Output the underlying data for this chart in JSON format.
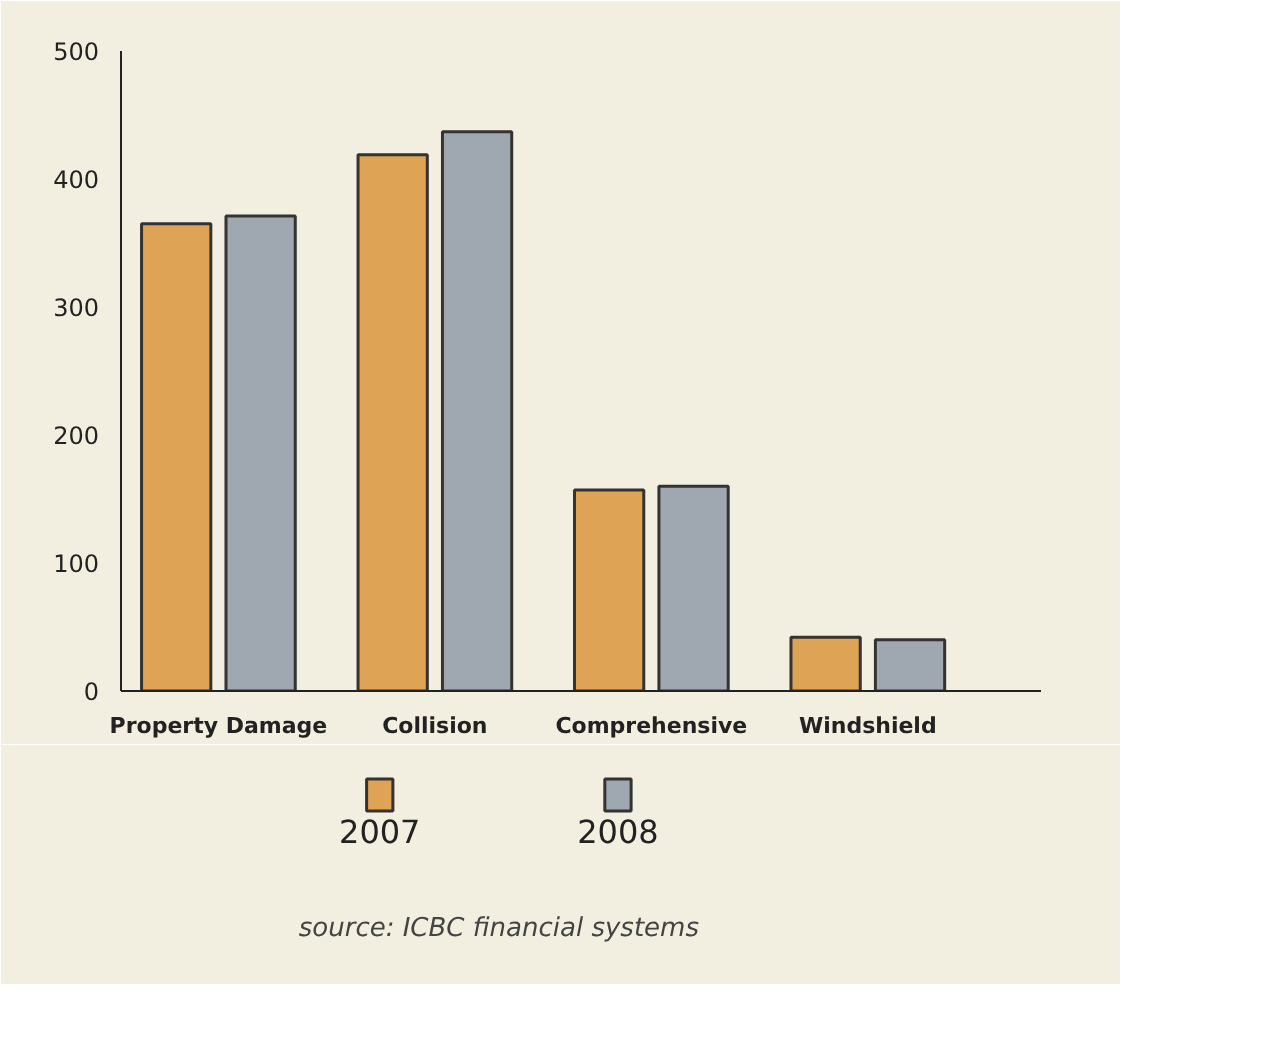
{
  "chart_data": {
    "type": "bar",
    "categories": [
      "Property Damage",
      "Collision",
      "Comprehensive",
      "Windshield"
    ],
    "series": [
      {
        "name": "2007",
        "color": "#dea354",
        "values": [
          365,
          419,
          157,
          42
        ]
      },
      {
        "name": "2008",
        "color": "#9fa8b0",
        "values": [
          371,
          437,
          160,
          40
        ]
      }
    ],
    "ylim": [
      0,
      500
    ],
    "yticks": [
      0,
      100,
      200,
      300,
      400,
      500
    ],
    "grid": false,
    "legend": "bottom",
    "annotations": [
      "source: ICBC financial systems"
    ]
  }
}
